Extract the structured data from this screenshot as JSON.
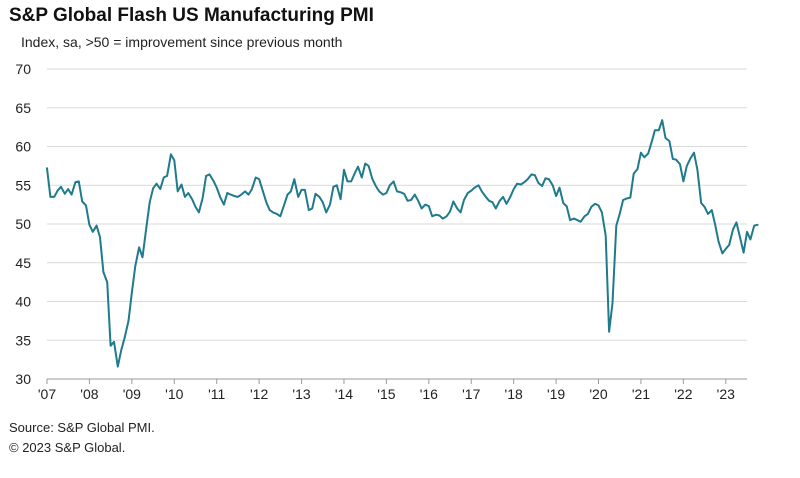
{
  "title": "S&P Global Flash US Manufacturing PMI",
  "subtitle": "Index, sa, >50 = improvement  since previous month",
  "source": "Source: S&P Global PMI.",
  "copyright": "© 2023 S&P Global.",
  "colors": {
    "line": "#1f7a8c",
    "grid": "#d9d9d9",
    "axis": "#9a9a9a"
  },
  "chart_data": {
    "type": "line",
    "title": "S&P Global Flash US Manufacturing PMI",
    "subtitle": "Index, sa, >50 = improvement  since previous month",
    "xlabel": "",
    "ylabel": "",
    "ylim": [
      30,
      70
    ],
    "yticks": [
      30,
      35,
      40,
      45,
      50,
      55,
      60,
      65,
      70
    ],
    "xlim": [
      2007.0,
      2023.5
    ],
    "xtick_labels": [
      "'07",
      "'08",
      "'09",
      "'10",
      "'11",
      "'12",
      "'13",
      "'14",
      "'15",
      "'16",
      "'17",
      "'18",
      "'19",
      "'20",
      "'21",
      "'22",
      "'23"
    ],
    "xtick_years": [
      2007,
      2008,
      2009,
      2010,
      2011,
      2012,
      2013,
      2014,
      2015,
      2016,
      2017,
      2018,
      2019,
      2020,
      2021,
      2022,
      2023
    ],
    "grid": "horizontal",
    "series": [
      {
        "values": [
          [
            2007.0,
            57.2
          ],
          [
            2007.08,
            53.5
          ],
          [
            2007.17,
            53.5
          ],
          [
            2007.25,
            54.3
          ],
          [
            2007.33,
            54.8
          ],
          [
            2007.42,
            53.9
          ],
          [
            2007.5,
            54.5
          ],
          [
            2007.58,
            53.8
          ],
          [
            2007.67,
            55.4
          ],
          [
            2007.75,
            55.5
          ],
          [
            2007.83,
            52.9
          ],
          [
            2007.92,
            52.4
          ],
          [
            2008.0,
            49.9
          ],
          [
            2008.08,
            49.0
          ],
          [
            2008.17,
            49.8
          ],
          [
            2008.25,
            48.3
          ],
          [
            2008.33,
            43.8
          ],
          [
            2008.42,
            42.5
          ],
          [
            2008.5,
            34.3
          ],
          [
            2008.58,
            34.8
          ],
          [
            2008.67,
            31.6
          ],
          [
            2008.75,
            33.7
          ],
          [
            2008.83,
            35.3
          ],
          [
            2008.92,
            37.5
          ],
          [
            2009.0,
            41.1
          ],
          [
            2009.08,
            44.5
          ],
          [
            2009.17,
            47.0
          ],
          [
            2009.25,
            45.7
          ],
          [
            2009.33,
            49.0
          ],
          [
            2009.42,
            52.8
          ],
          [
            2009.5,
            54.6
          ],
          [
            2009.58,
            55.2
          ],
          [
            2009.67,
            54.5
          ],
          [
            2009.75,
            56.0
          ],
          [
            2009.83,
            56.2
          ],
          [
            2009.92,
            59.0
          ],
          [
            2010.0,
            58.2
          ],
          [
            2010.08,
            54.2
          ],
          [
            2010.17,
            55.1
          ],
          [
            2010.25,
            53.5
          ],
          [
            2010.33,
            54.0
          ],
          [
            2010.42,
            53.2
          ],
          [
            2010.5,
            52.2
          ],
          [
            2010.58,
            51.5
          ],
          [
            2010.67,
            53.4
          ],
          [
            2010.75,
            56.2
          ],
          [
            2010.83,
            56.4
          ],
          [
            2010.92,
            55.6
          ],
          [
            2011.0,
            54.7
          ],
          [
            2011.08,
            53.5
          ],
          [
            2011.17,
            52.5
          ],
          [
            2011.25,
            54.0
          ],
          [
            2011.33,
            53.8
          ],
          [
            2011.42,
            53.6
          ],
          [
            2011.5,
            53.5
          ],
          [
            2011.58,
            53.8
          ],
          [
            2011.67,
            54.2
          ],
          [
            2011.75,
            53.8
          ],
          [
            2011.83,
            54.5
          ],
          [
            2011.92,
            56.0
          ],
          [
            2012.0,
            55.8
          ],
          [
            2012.08,
            54.4
          ],
          [
            2012.17,
            52.8
          ],
          [
            2012.25,
            51.8
          ],
          [
            2012.33,
            51.5
          ],
          [
            2012.42,
            51.3
          ],
          [
            2012.5,
            51.0
          ],
          [
            2012.58,
            52.3
          ],
          [
            2012.67,
            53.8
          ],
          [
            2012.75,
            54.2
          ],
          [
            2012.83,
            55.8
          ],
          [
            2012.92,
            53.5
          ],
          [
            2013.0,
            54.4
          ],
          [
            2013.08,
            54.4
          ],
          [
            2013.17,
            51.8
          ],
          [
            2013.25,
            52.0
          ],
          [
            2013.33,
            53.9
          ],
          [
            2013.42,
            53.5
          ],
          [
            2013.5,
            52.8
          ],
          [
            2013.58,
            51.5
          ],
          [
            2013.67,
            52.5
          ],
          [
            2013.75,
            54.8
          ],
          [
            2013.83,
            55.0
          ],
          [
            2013.92,
            53.2
          ],
          [
            2014.0,
            57.0
          ],
          [
            2014.08,
            55.5
          ],
          [
            2014.17,
            55.5
          ],
          [
            2014.25,
            56.5
          ],
          [
            2014.33,
            57.4
          ],
          [
            2014.42,
            56.0
          ],
          [
            2014.5,
            57.8
          ],
          [
            2014.58,
            57.5
          ],
          [
            2014.67,
            55.8
          ],
          [
            2014.75,
            54.9
          ],
          [
            2014.83,
            54.2
          ],
          [
            2014.92,
            53.8
          ],
          [
            2015.0,
            54.0
          ],
          [
            2015.08,
            55.0
          ],
          [
            2015.17,
            55.5
          ],
          [
            2015.25,
            54.2
          ],
          [
            2015.33,
            54.1
          ],
          [
            2015.42,
            53.9
          ],
          [
            2015.5,
            53.0
          ],
          [
            2015.58,
            53.1
          ],
          [
            2015.67,
            53.8
          ],
          [
            2015.75,
            53.0
          ],
          [
            2015.83,
            52.0
          ],
          [
            2015.92,
            52.5
          ],
          [
            2016.0,
            52.3
          ],
          [
            2016.08,
            51.0
          ],
          [
            2016.17,
            51.2
          ],
          [
            2016.25,
            51.1
          ],
          [
            2016.33,
            50.7
          ],
          [
            2016.42,
            51.0
          ],
          [
            2016.5,
            51.6
          ],
          [
            2016.58,
            52.9
          ],
          [
            2016.67,
            52.0
          ],
          [
            2016.75,
            51.5
          ],
          [
            2016.83,
            53.1
          ],
          [
            2016.92,
            54.0
          ],
          [
            2017.0,
            54.3
          ],
          [
            2017.08,
            54.7
          ],
          [
            2017.17,
            55.0
          ],
          [
            2017.25,
            54.2
          ],
          [
            2017.33,
            53.6
          ],
          [
            2017.42,
            53.0
          ],
          [
            2017.5,
            52.8
          ],
          [
            2017.58,
            52.0
          ],
          [
            2017.67,
            53.0
          ],
          [
            2017.75,
            53.5
          ],
          [
            2017.83,
            52.6
          ],
          [
            2017.92,
            53.5
          ],
          [
            2018.0,
            54.5
          ],
          [
            2018.08,
            55.2
          ],
          [
            2018.17,
            55.1
          ],
          [
            2018.25,
            55.4
          ],
          [
            2018.33,
            55.8
          ],
          [
            2018.42,
            56.4
          ],
          [
            2018.5,
            56.3
          ],
          [
            2018.58,
            55.3
          ],
          [
            2018.67,
            54.9
          ],
          [
            2018.75,
            55.9
          ],
          [
            2018.83,
            55.8
          ],
          [
            2018.92,
            55.0
          ],
          [
            2019.0,
            53.6
          ],
          [
            2019.08,
            54.7
          ],
          [
            2019.17,
            52.7
          ],
          [
            2019.25,
            52.3
          ],
          [
            2019.33,
            50.5
          ],
          [
            2019.42,
            50.7
          ],
          [
            2019.5,
            50.5
          ],
          [
            2019.58,
            50.3
          ],
          [
            2019.67,
            51.0
          ],
          [
            2019.75,
            51.3
          ],
          [
            2019.83,
            52.2
          ],
          [
            2019.92,
            52.6
          ],
          [
            2020.0,
            52.4
          ],
          [
            2020.08,
            51.5
          ],
          [
            2020.17,
            48.5
          ],
          [
            2020.25,
            36.1
          ],
          [
            2020.33,
            39.8
          ],
          [
            2020.42,
            49.8
          ],
          [
            2020.5,
            51.3
          ],
          [
            2020.58,
            53.1
          ],
          [
            2020.67,
            53.3
          ],
          [
            2020.75,
            53.4
          ],
          [
            2020.83,
            56.5
          ],
          [
            2020.92,
            57.1
          ],
          [
            2021.0,
            59.2
          ],
          [
            2021.08,
            58.6
          ],
          [
            2021.17,
            59.1
          ],
          [
            2021.25,
            60.5
          ],
          [
            2021.33,
            62.1
          ],
          [
            2021.42,
            62.1
          ],
          [
            2021.5,
            63.4
          ],
          [
            2021.58,
            61.1
          ],
          [
            2021.67,
            60.7
          ],
          [
            2021.75,
            58.4
          ],
          [
            2021.83,
            58.3
          ],
          [
            2021.92,
            57.7
          ],
          [
            2022.0,
            55.5
          ],
          [
            2022.08,
            57.5
          ],
          [
            2022.17,
            58.5
          ],
          [
            2022.25,
            59.2
          ],
          [
            2022.33,
            57.0
          ],
          [
            2022.42,
            52.7
          ],
          [
            2022.5,
            52.2
          ],
          [
            2022.58,
            51.3
          ],
          [
            2022.67,
            51.8
          ],
          [
            2022.75,
            49.9
          ],
          [
            2022.83,
            47.7
          ],
          [
            2022.92,
            46.2
          ],
          [
            2023.0,
            46.8
          ],
          [
            2023.08,
            47.3
          ],
          [
            2023.17,
            49.3
          ],
          [
            2023.25,
            50.2
          ],
          [
            2023.33,
            48.4
          ],
          [
            2023.42,
            46.3
          ],
          [
            2023.5,
            49.0
          ],
          [
            2023.58,
            48.0
          ],
          [
            2023.67,
            49.8
          ],
          [
            2023.75,
            49.9
          ]
        ]
      }
    ]
  }
}
